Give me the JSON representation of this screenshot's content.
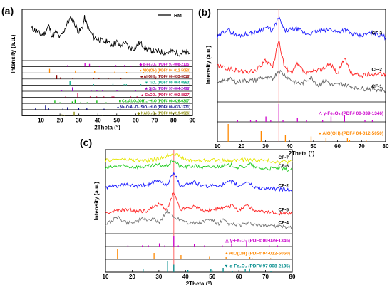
{
  "chart_data": [
    {
      "panel": "(a)",
      "type": "line",
      "xlabel": "2Theta (°)",
      "ylabel": "Intensity (a.u.)",
      "xlim": [
        0,
        90
      ],
      "xticks": [
        "10",
        "20",
        "30",
        "40",
        "50",
        "60",
        "70",
        "80",
        "90"
      ],
      "legend": "top-right",
      "legend_entries": [
        "RM"
      ],
      "series": [
        {
          "name": "RM",
          "color": "#000000",
          "x": [
            5,
            8,
            10,
            12,
            14,
            16,
            18,
            20,
            22,
            24,
            25,
            26,
            28,
            30,
            32,
            33,
            35,
            36,
            38,
            40,
            42,
            44,
            45,
            46,
            48,
            50,
            52,
            54,
            56,
            58,
            60,
            62,
            64,
            66,
            68,
            70,
            72,
            75,
            78,
            80,
            83,
            86,
            89
          ],
          "y": [
            8.0,
            7.7,
            7.3,
            7.5,
            8.3,
            7.2,
            7.6,
            7.0,
            7.7,
            8.6,
            8.9,
            9.1,
            8.4,
            7.6,
            8.2,
            9.1,
            8.0,
            7.6,
            7.1,
            6.9,
            6.7,
            6.6,
            6.8,
            6.4,
            6.3,
            6.6,
            6.1,
            6.6,
            6.1,
            5.9,
            6.0,
            6.5,
            6.2,
            5.8,
            5.7,
            5.6,
            5.6,
            5.5,
            5.5,
            5.6,
            5.4,
            5.5,
            5.4
          ]
        }
      ],
      "reference_rows": [
        {
          "label": "α-Fe₂O₃ (PDF# 97-008-2135)",
          "marker": "◆",
          "color": "#cc00cc",
          "peaks": [
            [
              24.1,
              4
            ],
            [
              33.2,
              10
            ],
            [
              35.6,
              7
            ],
            [
              40.9,
              2
            ],
            [
              49.5,
              4
            ],
            [
              54.1,
              4
            ],
            [
              57.6,
              1
            ],
            [
              62.4,
              3
            ],
            [
              64.0,
              3
            ]
          ]
        },
        {
          "label": "AlO(OH) (PDF# 04-012-5050)",
          "marker": "●",
          "color": "#ff8800",
          "peaks": [
            [
              14.5,
              10
            ],
            [
              28.2,
              6
            ],
            [
              38.3,
              4
            ],
            [
              49.0,
              3
            ],
            [
              55.2,
              2
            ],
            [
              64.1,
              2
            ],
            [
              72.0,
              1
            ]
          ]
        },
        {
          "label": "Al(OH)₃ (PDF# 00-033-0018)",
          "marker": "♣",
          "color": "#8b0000",
          "peaks": [
            [
              18.3,
              10
            ],
            [
              20.3,
              4
            ],
            [
              26.8,
              3
            ],
            [
              37.8,
              2
            ],
            [
              40.6,
              3
            ],
            [
              45.5,
              2
            ],
            [
              52.2,
              3
            ],
            [
              63.8,
              2
            ],
            [
              70.5,
              1
            ]
          ]
        },
        {
          "label": "TiO₂ (PDF# 00-064-0863)",
          "marker": "▼",
          "color": "#00aa88",
          "peaks": [
            [
              25.3,
              10
            ],
            [
              37.8,
              2
            ],
            [
              48.0,
              3
            ],
            [
              53.9,
              2
            ],
            [
              55.1,
              2
            ],
            [
              62.7,
              1
            ]
          ]
        },
        {
          "label": "SiO₂ (PDF# 97-004-2498)",
          "marker": "★",
          "color": "#9900cc",
          "peaks": [
            [
              20.9,
              3
            ],
            [
              26.6,
              10
            ],
            [
              36.5,
              1
            ],
            [
              39.5,
              1
            ],
            [
              42.5,
              1
            ],
            [
              50.1,
              2
            ],
            [
              60.0,
              1
            ],
            [
              68.1,
              1
            ]
          ]
        },
        {
          "label": "CaCO₃ (PDF# 97-002-8827)",
          "marker": "▲",
          "color": "#cc0044",
          "peaks": [
            [
              23.0,
              1
            ],
            [
              29.4,
              10
            ],
            [
              36.0,
              1
            ],
            [
              39.4,
              2
            ],
            [
              43.2,
              2
            ],
            [
              47.5,
              2
            ],
            [
              48.5,
              2
            ],
            [
              57.4,
              1
            ],
            [
              60.7,
              1
            ]
          ]
        },
        {
          "label": "Ca₃Al₂O₆(OH)₁₂·H₂O (PDF# 00-026-0307)",
          "marker": "■",
          "color": "#00bb00",
          "peaks": [
            [
              17.3,
              7
            ],
            [
              20.0,
              3
            ],
            [
              26.5,
              5
            ],
            [
              28.0,
              10
            ],
            [
              31.0,
              4
            ],
            [
              34.4,
              3
            ],
            [
              39.5,
              7
            ],
            [
              44.4,
              3
            ],
            [
              53.1,
              2
            ]
          ]
        },
        {
          "label": "Na₂O·Al₂O₃·SiO₂·H₂O (PDF# 00-031-1271)",
          "marker": "♠",
          "color": "#000088",
          "peaks": [
            [
              7.1,
              3
            ],
            [
              12.4,
              10
            ],
            [
              14.0,
              3
            ],
            [
              21.6,
              4
            ],
            [
              24.0,
              6
            ],
            [
              29.9,
              5
            ],
            [
              34.2,
              3
            ],
            [
              43.3,
              2
            ],
            [
              51.8,
              2
            ]
          ]
        },
        {
          "label": "KAlSi₃O₈ (PDF# 00-019-0926)",
          "marker": "◆",
          "color": "#888800",
          "peaks": [
            [
              13.8,
              2
            ],
            [
              21.0,
              3
            ],
            [
              22.4,
              2
            ],
            [
              27.5,
              10
            ],
            [
              29.9,
              3
            ],
            [
              32.2,
              2
            ],
            [
              42.6,
              2
            ],
            [
              50.6,
              1
            ],
            [
              59.9,
              1
            ]
          ]
        }
      ]
    },
    {
      "panel": "(b)",
      "type": "line",
      "xlabel": "2Theta (°)",
      "ylabel": "Intensity (a.u.)",
      "xlim": [
        10,
        80
      ],
      "xticks": [
        "10",
        "20",
        "30",
        "40",
        "50",
        "60",
        "70",
        "80"
      ],
      "series": [
        {
          "name": "CF-3",
          "color": "#1a1aff",
          "x": [
            10,
            14,
            18,
            22,
            26,
            30.2,
            33,
            35.5,
            38,
            43.2,
            47,
            53.7,
            57.2,
            60,
            62.8,
            66,
            70,
            75,
            80
          ],
          "y": [
            3.05,
            3.3,
            3.1,
            3.15,
            3.2,
            3.35,
            3.25,
            3.65,
            3.25,
            3.3,
            3.15,
            3.25,
            3.3,
            3.2,
            3.3,
            3.15,
            3.1,
            3.2,
            3.05
          ]
        },
        {
          "name": "CF-2",
          "color": "#ff2222",
          "x": [
            10,
            14,
            18,
            22,
            26,
            30.2,
            33,
            35.5,
            38,
            41,
            43.2,
            47,
            53.7,
            57.2,
            60,
            62.8,
            66,
            70,
            75,
            80
          ],
          "y": [
            2.2,
            2.1,
            2.05,
            2.0,
            2.05,
            2.35,
            2.15,
            2.95,
            2.15,
            1.95,
            2.25,
            1.95,
            2.1,
            2.25,
            1.95,
            2.4,
            1.95,
            1.9,
            1.95,
            1.95
          ]
        },
        {
          "name": "CF-1",
          "color": "#666666",
          "x": [
            10,
            14.5,
            18,
            22,
            26,
            28.2,
            30,
            33,
            35.5,
            38.3,
            42,
            45,
            49,
            52,
            55.2,
            58,
            62,
            66,
            70,
            75,
            80
          ],
          "y": [
            1.65,
            1.8,
            1.7,
            1.75,
            1.75,
            1.85,
            1.8,
            1.8,
            2.05,
            1.9,
            1.7,
            1.65,
            1.85,
            1.6,
            1.75,
            1.6,
            1.65,
            1.55,
            1.5,
            1.5,
            1.45
          ]
        }
      ],
      "reference_rows": [
        {
          "label": "γ-Fe₂O₃ (PDF# 00-039-1346)",
          "marker": "△",
          "color": "#cc00cc",
          "peaks": [
            [
              18.4,
              1
            ],
            [
              23.8,
              1
            ],
            [
              26.1,
              1
            ],
            [
              30.2,
              3
            ],
            [
              32.2,
              1
            ],
            [
              35.6,
              10
            ],
            [
              37.3,
              1
            ],
            [
              43.3,
              2
            ],
            [
              47.1,
              1
            ],
            [
              53.8,
              1
            ],
            [
              57.3,
              3
            ],
            [
              62.9,
              4
            ],
            [
              71.4,
              1
            ],
            [
              74.5,
              1
            ]
          ]
        },
        {
          "label": "AlO(OH) (PDF# 04-012-5050)",
          "marker": "●",
          "color": "#ff8800",
          "peaks": [
            [
              14.5,
              10
            ],
            [
              28.2,
              6
            ],
            [
              38.3,
              4
            ],
            [
              49.0,
              3
            ],
            [
              55.2,
              2
            ],
            [
              64.1,
              2
            ],
            [
              65.0,
              1
            ],
            [
              71.9,
              1
            ]
          ]
        }
      ],
      "vline": 35.6
    },
    {
      "panel": "(c)",
      "type": "line",
      "xlabel": "2Theta (°)",
      "ylabel": "Intensity (a.u.)",
      "xlim": [
        10,
        80
      ],
      "xticks": [
        "10",
        "20",
        "30",
        "40",
        "50",
        "60",
        "70",
        "80"
      ],
      "series": [
        {
          "name": "CF-7",
          "color": "#e6e600",
          "x": [
            10,
            15,
            20,
            25,
            30,
            35.5,
            40,
            45,
            50,
            55,
            60,
            65,
            70,
            75,
            80
          ],
          "y": [
            5.25,
            5.35,
            5.3,
            5.25,
            5.35,
            5.7,
            5.3,
            5.25,
            5.3,
            5.25,
            5.3,
            5.3,
            5.25,
            5.2,
            5.2
          ]
        },
        {
          "name": "CF-6",
          "color": "#22cc22",
          "x": [
            10,
            15,
            20,
            25,
            30.2,
            33,
            35.5,
            38,
            43.2,
            47,
            53.7,
            57.2,
            60,
            62.9,
            64.2,
            66,
            70,
            75,
            80
          ],
          "y": [
            4.8,
            4.95,
            4.9,
            4.9,
            5.0,
            4.95,
            5.3,
            4.9,
            4.95,
            4.85,
            4.95,
            5.0,
            4.85,
            4.95,
            5.05,
            4.85,
            4.8,
            4.8,
            4.7
          ]
        },
        {
          "name": "CF-2",
          "color": "#1a1aff",
          "x": [
            10,
            15,
            18.4,
            22,
            26,
            30.2,
            33,
            35.6,
            38,
            43.3,
            47,
            53.8,
            57.3,
            60,
            62.9,
            66,
            70,
            75,
            80
          ],
          "y": [
            3.7,
            3.8,
            3.85,
            3.75,
            3.85,
            4.1,
            3.8,
            4.6,
            3.8,
            4.0,
            3.75,
            3.85,
            4.05,
            3.75,
            4.05,
            3.7,
            3.65,
            3.6,
            3.55
          ]
        },
        {
          "name": "CF-5",
          "color": "#ff2222",
          "x": [
            10,
            15,
            18.4,
            22,
            26,
            30.2,
            33,
            35.6,
            38,
            43.3,
            47,
            53.8,
            57.3,
            60,
            62.9,
            66,
            70,
            75,
            80
          ],
          "y": [
            2.2,
            2.35,
            2.4,
            2.3,
            2.35,
            2.75,
            2.4,
            3.4,
            2.4,
            2.6,
            2.35,
            2.45,
            2.65,
            2.35,
            2.7,
            2.3,
            2.25,
            2.2,
            2.15
          ]
        },
        {
          "name": "CF-4",
          "color": "#777777",
          "x": [
            10,
            14.5,
            18,
            21,
            24.1,
            28.2,
            30.5,
            33.2,
            35.6,
            38.3,
            41,
            44,
            49.0,
            50.5,
            52.5,
            54.1,
            56,
            60,
            64,
            68,
            72,
            76,
            80
          ],
          "y": [
            1.55,
            1.95,
            1.65,
            1.7,
            1.85,
            1.8,
            1.7,
            2.35,
            1.95,
            1.85,
            1.65,
            1.6,
            1.8,
            1.75,
            1.55,
            1.8,
            1.55,
            1.5,
            1.6,
            1.45,
            1.5,
            1.4,
            1.4
          ]
        }
      ],
      "reference_rows": [
        {
          "label": "γ-Fe₂O₃ (PDF# 00-039-1346)",
          "marker": "△",
          "color": "#cc00cc",
          "peaks": [
            [
              18.4,
              1
            ],
            [
              23.8,
              1
            ],
            [
              26.1,
              1
            ],
            [
              30.2,
              3
            ],
            [
              32.2,
              1
            ],
            [
              35.6,
              10
            ],
            [
              37.3,
              1
            ],
            [
              43.3,
              2
            ],
            [
              47.1,
              1
            ],
            [
              53.8,
              1
            ],
            [
              57.3,
              3
            ],
            [
              62.9,
              4
            ],
            [
              71.4,
              1
            ],
            [
              74.5,
              1
            ]
          ]
        },
        {
          "label": "AlO(OH) (PDF# 04-012-5050)",
          "marker": "●",
          "color": "#ff8800",
          "peaks": [
            [
              14.5,
              10
            ],
            [
              28.2,
              6
            ],
            [
              38.3,
              4
            ],
            [
              49.0,
              3
            ],
            [
              55.2,
              2
            ],
            [
              64.1,
              2
            ],
            [
              65.0,
              1
            ],
            [
              71.9,
              1
            ]
          ]
        },
        {
          "label": "α-Fe₂O₃ (PDF# 97-008-2135)",
          "marker": "▼",
          "color": "#008b8b",
          "peaks": [
            [
              24.1,
              3
            ],
            [
              33.2,
              10
            ],
            [
              35.6,
              7
            ],
            [
              40.9,
              2
            ],
            [
              49.5,
              3
            ],
            [
              54.1,
              4
            ],
            [
              57.6,
              1
            ],
            [
              62.4,
              3
            ],
            [
              64.0,
              3
            ],
            [
              72.0,
              1
            ]
          ]
        }
      ],
      "vline": 35.6
    }
  ]
}
